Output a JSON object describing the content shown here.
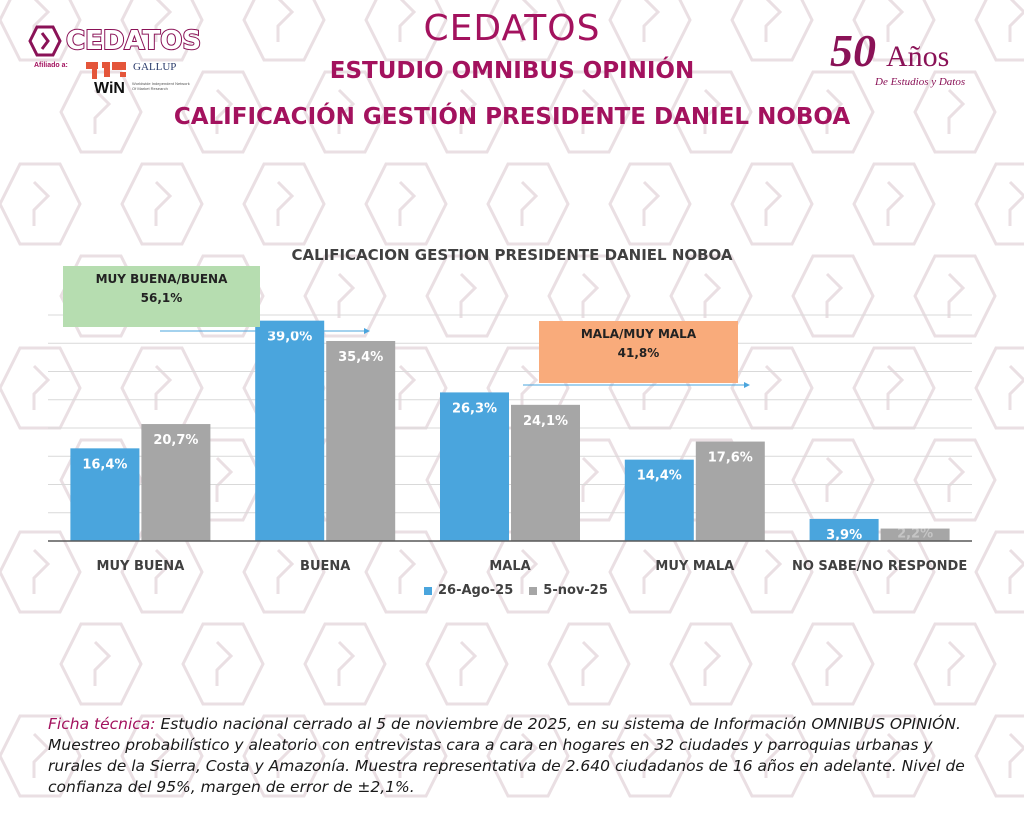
{
  "header": {
    "brand": "CEDATOS",
    "title": "CEDATOS",
    "subtitle": "ESTUDIO OMNIBUS OPINIÓN",
    "heading": "CALIFICACIÓN GESTIÓN PRESIDENTE DANIEL NOBOA",
    "affiliated_label": "Afiliado a:",
    "gallup": "GALLUP",
    "win": "WiN",
    "win_sub": "Worldwide Independent Network Of Market Research",
    "anniversary_number": "50",
    "anniversary_word": "Años",
    "anniversary_sub": "De Estudios y Datos"
  },
  "colors": {
    "brand": "#a3125e",
    "series1": "#4aa5dd",
    "series2": "#a6a6a6",
    "green_callout": "#b6ddb0",
    "orange_callout": "#f9ab7b"
  },
  "callouts": {
    "positive_label": "MUY BUENA/BUENA",
    "positive_value": "56,1%",
    "negative_label": "MALA/MUY MALA",
    "negative_value": "41,8%"
  },
  "chart_data": {
    "type": "bar",
    "title": "CALIFICACION GESTION PRESIDENTE DANIEL NOBOA",
    "categories": [
      "MUY BUENA",
      "BUENA",
      "MALA",
      "MUY MALA",
      "NO SABE/NO RESPONDE"
    ],
    "series": [
      {
        "name": "26-Ago-25",
        "values": [
          16.4,
          39.0,
          26.3,
          14.4,
          3.9
        ],
        "labels": [
          "16,4%",
          "39,0%",
          "26,3%",
          "14,4%",
          "3,9%"
        ]
      },
      {
        "name": "5-nov-25",
        "values": [
          20.7,
          35.4,
          24.1,
          17.6,
          2.2
        ],
        "labels": [
          "20,7%",
          "35,4%",
          "24,1%",
          "17,6%",
          "2,2%"
        ]
      }
    ],
    "xlabel": "",
    "ylabel": "",
    "ylim": [
      0,
      40
    ],
    "grid": true,
    "legend": "bottom"
  },
  "footer": {
    "label": "Ficha técnica:",
    "text": " Estudio nacional cerrado al 5 de noviembre de 2025, en su sistema de Información OMNIBUS OPINIÓN. Muestreo probabilístico y aleatorio con entrevistas cara a cara en hogares en 32 ciudades y parroquias urbanas y rurales de la Sierra, Costa y Amazonía. Muestra representativa de 2.640 ciudadanos de 16 años en adelante. Nivel de confianza del 95%, margen de error de ±2,1%."
  }
}
